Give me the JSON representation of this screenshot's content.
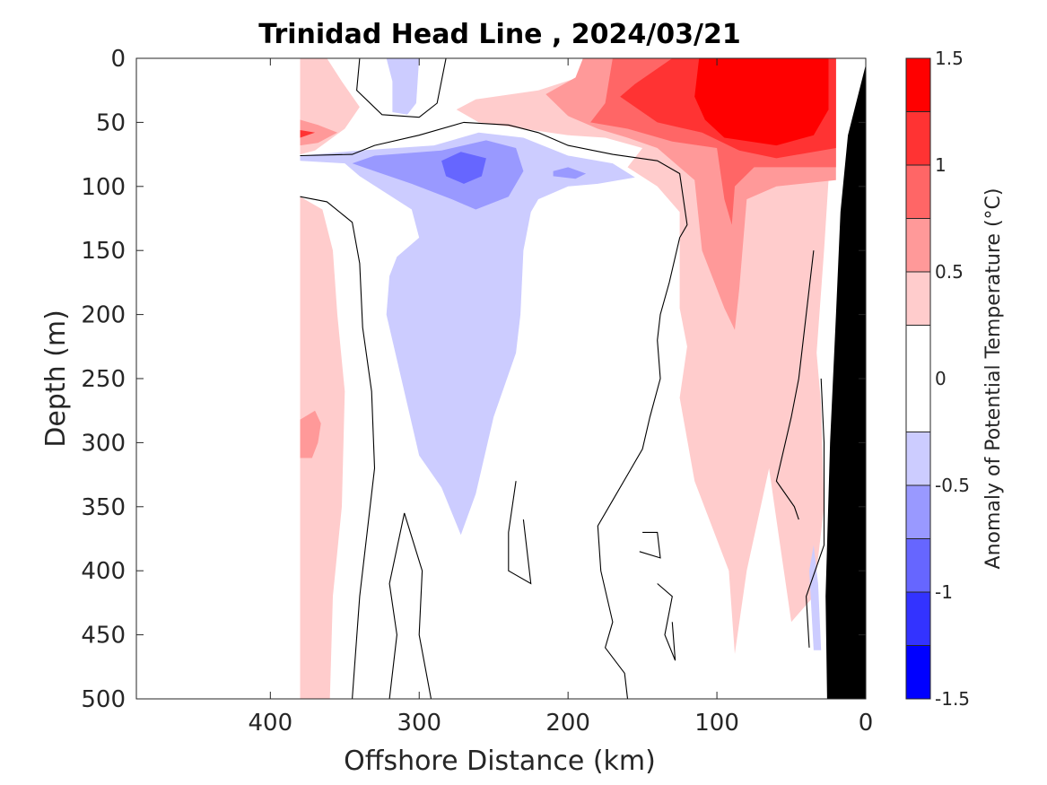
{
  "chart_data": {
    "type": "heatmap",
    "subtype": "filled-contour",
    "title": "Trinidad Head Line , 2024/03/21",
    "xlabel": "Offshore Distance (km)",
    "ylabel": "Depth (m)",
    "xlim": [
      490,
      0
    ],
    "x_reversed": true,
    "ylim": [
      0,
      500
    ],
    "y_reversed": true,
    "x_ticks": [
      400,
      300,
      200,
      100,
      0
    ],
    "y_ticks": [
      0,
      50,
      100,
      150,
      200,
      250,
      300,
      350,
      400,
      450,
      500
    ],
    "colorbar": {
      "label": "Anomaly of Potential Temperature (°C)",
      "ticks": [
        1.5,
        1,
        0.5,
        0,
        -0.5,
        -1,
        -1.5
      ],
      "range": [
        -1.5,
        1.5
      ],
      "levels": [
        {
          "from": 1.25,
          "to": 1.5,
          "color": "#ff0000"
        },
        {
          "from": 1.0,
          "to": 1.25,
          "color": "#ff3333"
        },
        {
          "from": 0.75,
          "to": 1.0,
          "color": "#ff6666"
        },
        {
          "from": 0.5,
          "to": 0.75,
          "color": "#ff9999"
        },
        {
          "from": 0.25,
          "to": 0.5,
          "color": "#ffcccc"
        },
        {
          "from": -0.25,
          "to": 0.25,
          "color": "#ffffff"
        },
        {
          "from": -0.5,
          "to": -0.25,
          "color": "#ccccff"
        },
        {
          "from": -0.75,
          "to": -0.5,
          "color": "#9999ff"
        },
        {
          "from": -1.0,
          "to": -0.75,
          "color": "#6666ff"
        },
        {
          "from": -1.25,
          "to": -1.0,
          "color": "#3333ff"
        },
        {
          "from": -1.5,
          "to": -1.25,
          "color": "#0000ff"
        }
      ]
    },
    "data_extent_km": [
      380,
      20
    ],
    "regions": [
      {
        "anomaly": 0.35,
        "color": "#ffcccc",
        "points": [
          [
            380,
            0
          ],
          [
            362,
            0
          ],
          [
            352,
            18
          ],
          [
            340,
            38
          ],
          [
            350,
            55
          ],
          [
            370,
            72
          ],
          [
            380,
            75
          ]
        ]
      },
      {
        "anomaly": 0.35,
        "color": "#ffcccc",
        "points": [
          [
            380,
            108
          ],
          [
            365,
            118
          ],
          [
            358,
            150
          ],
          [
            355,
            200
          ],
          [
            350,
            260
          ],
          [
            352,
            350
          ],
          [
            358,
            420
          ],
          [
            360,
            500
          ],
          [
            380,
            500
          ]
        ]
      },
      {
        "anomaly": 0.6,
        "color": "#ff9999",
        "points": [
          [
            380,
            48
          ],
          [
            368,
            52
          ],
          [
            355,
            58
          ],
          [
            368,
            66
          ],
          [
            380,
            68
          ]
        ]
      },
      {
        "anomaly": 1.1,
        "color": "#ff3333",
        "points": [
          [
            380,
            56
          ],
          [
            370,
            58
          ],
          [
            380,
            62
          ]
        ]
      },
      {
        "anomaly": 0.6,
        "color": "#ff9999",
        "points": [
          [
            380,
            282
          ],
          [
            370,
            275
          ],
          [
            366,
            285
          ],
          [
            368,
            300
          ],
          [
            372,
            312
          ],
          [
            380,
            312
          ]
        ]
      },
      {
        "anomaly": 0.35,
        "color": "#ffcccc",
        "points": [
          [
            275,
            40
          ],
          [
            262,
            32
          ],
          [
            220,
            25
          ],
          [
            185,
            12
          ],
          [
            165,
            0
          ],
          [
            20,
            0
          ],
          [
            22,
            40
          ],
          [
            28,
            150
          ],
          [
            33,
            230
          ],
          [
            30,
            270
          ],
          [
            28,
            350
          ],
          [
            35,
            420
          ],
          [
            50,
            440
          ],
          [
            60,
            360
          ],
          [
            65,
            320
          ],
          [
            80,
            400
          ],
          [
            88,
            465
          ],
          [
            92,
            400
          ],
          [
            115,
            330
          ],
          [
            125,
            265
          ],
          [
            120,
            225
          ],
          [
            125,
            195
          ],
          [
            125,
            120
          ],
          [
            140,
            100
          ],
          [
            160,
            85
          ],
          [
            150,
            70
          ],
          [
            175,
            62
          ],
          [
            200,
            60
          ],
          [
            230,
            55
          ],
          [
            260,
            50
          ]
        ]
      },
      {
        "anomaly": 0.6,
        "color": "#ff9999",
        "points": [
          [
            215,
            28
          ],
          [
            195,
            15
          ],
          [
            190,
            0
          ],
          [
            20,
            0
          ],
          [
            20,
            95
          ],
          [
            60,
            100
          ],
          [
            80,
            110
          ],
          [
            85,
            180
          ],
          [
            88,
            212
          ],
          [
            95,
            195
          ],
          [
            110,
            150
          ],
          [
            115,
            95
          ],
          [
            140,
            70
          ],
          [
            160,
            62
          ],
          [
            180,
            55
          ],
          [
            200,
            45
          ]
        ]
      },
      {
        "anomaly": 0.85,
        "color": "#ff6666",
        "points": [
          [
            185,
            50
          ],
          [
            175,
            35
          ],
          [
            170,
            0
          ],
          [
            20,
            0
          ],
          [
            20,
            85
          ],
          [
            75,
            85
          ],
          [
            88,
            100
          ],
          [
            90,
            130
          ],
          [
            95,
            110
          ],
          [
            100,
            70
          ],
          [
            130,
            65
          ],
          [
            160,
            55
          ]
        ]
      },
      {
        "anomaly": 1.1,
        "color": "#ff3333",
        "points": [
          [
            165,
            30
          ],
          [
            155,
            20
          ],
          [
            130,
            0
          ],
          [
            20,
            0
          ],
          [
            20,
            70
          ],
          [
            60,
            78
          ],
          [
            85,
            72
          ],
          [
            110,
            58
          ],
          [
            140,
            50
          ]
        ]
      },
      {
        "anomaly": 1.4,
        "color": "#ff0000",
        "points": [
          [
            115,
            30
          ],
          [
            112,
            0
          ],
          [
            25,
            0
          ],
          [
            25,
            40
          ],
          [
            35,
            60
          ],
          [
            60,
            68
          ],
          [
            95,
            62
          ],
          [
            108,
            48
          ]
        ]
      },
      {
        "anomaly": -0.35,
        "color": "#ccccff",
        "points": [
          [
            322,
            0
          ],
          [
            318,
            18
          ],
          [
            318,
            42
          ],
          [
            308,
            44
          ],
          [
            302,
            35
          ],
          [
            300,
            0
          ]
        ]
      },
      {
        "anomaly": -0.35,
        "color": "#ccccff",
        "points": [
          [
            380,
            80
          ],
          [
            350,
            82
          ],
          [
            340,
            92
          ],
          [
            305,
            118
          ],
          [
            300,
            140
          ],
          [
            315,
            155
          ],
          [
            320,
            170
          ],
          [
            322,
            200
          ],
          [
            312,
            250
          ],
          [
            300,
            310
          ],
          [
            285,
            335
          ],
          [
            272,
            372
          ],
          [
            262,
            340
          ],
          [
            250,
            280
          ],
          [
            235,
            230
          ],
          [
            232,
            200
          ],
          [
            230,
            150
          ],
          [
            225,
            120
          ],
          [
            220,
            110
          ],
          [
            200,
            100
          ],
          [
            180,
            98
          ],
          [
            155,
            93
          ],
          [
            170,
            82
          ],
          [
            200,
            76
          ],
          [
            230,
            62
          ],
          [
            260,
            58
          ],
          [
            290,
            68
          ],
          [
            340,
            72
          ],
          [
            380,
            76
          ]
        ]
      },
      {
        "anomaly": -0.6,
        "color": "#9999ff",
        "points": [
          [
            345,
            82
          ],
          [
            330,
            88
          ],
          [
            305,
            98
          ],
          [
            278,
            110
          ],
          [
            262,
            118
          ],
          [
            240,
            108
          ],
          [
            230,
            88
          ],
          [
            235,
            70
          ],
          [
            255,
            64
          ],
          [
            285,
            72
          ],
          [
            330,
            76
          ]
        ]
      },
      {
        "anomaly": -0.6,
        "color": "#9999ff",
        "points": [
          [
            210,
            88
          ],
          [
            200,
            85
          ],
          [
            188,
            90
          ],
          [
            195,
            94
          ],
          [
            210,
            92
          ]
        ]
      },
      {
        "anomaly": -0.85,
        "color": "#6666ff",
        "points": [
          [
            285,
            80
          ],
          [
            272,
            73
          ],
          [
            255,
            78
          ],
          [
            258,
            92
          ],
          [
            270,
            98
          ],
          [
            282,
            92
          ]
        ]
      },
      {
        "anomaly": -0.35,
        "color": "#ccccff",
        "points": [
          [
            35,
            380
          ],
          [
            32,
            410
          ],
          [
            30,
            462
          ],
          [
            35,
            462
          ],
          [
            38,
            400
          ]
        ]
      }
    ],
    "contour_lines_0C": [
      [
        [
          380,
          76
        ],
        [
          345,
          75
        ],
        [
          330,
          68
        ],
        [
          300,
          60
        ],
        [
          270,
          50
        ],
        [
          240,
          52
        ],
        [
          220,
          58
        ],
        [
          200,
          68
        ],
        [
          170,
          75
        ],
        [
          140,
          80
        ],
        [
          125,
          90
        ],
        [
          120,
          130
        ],
        [
          125,
          140
        ],
        [
          132,
          175
        ],
        [
          138,
          200
        ],
        [
          140,
          220
        ],
        [
          138,
          250
        ],
        [
          145,
          280
        ],
        [
          150,
          305
        ],
        [
          160,
          325
        ],
        [
          170,
          345
        ],
        [
          180,
          365
        ],
        [
          178,
          400
        ],
        [
          170,
          440
        ],
        [
          175,
          460
        ],
        [
          162,
          480
        ],
        [
          160,
          500
        ]
      ],
      [
        [
          380,
          108
        ],
        [
          362,
          112
        ],
        [
          345,
          128
        ],
        [
          340,
          160
        ],
        [
          338,
          210
        ],
        [
          332,
          260
        ],
        [
          330,
          320
        ],
        [
          340,
          420
        ],
        [
          345,
          500
        ]
      ],
      [
        [
          340,
          0
        ],
        [
          342,
          25
        ],
        [
          325,
          44
        ],
        [
          300,
          46
        ],
        [
          288,
          35
        ],
        [
          282,
          0
        ]
      ],
      [
        [
          310,
          355
        ],
        [
          298,
          400
        ],
        [
          300,
          450
        ],
        [
          292,
          500
        ]
      ],
      [
        [
          310,
          355
        ],
        [
          320,
          410
        ],
        [
          315,
          450
        ],
        [
          320,
          500
        ]
      ],
      [
        [
          235,
          330
        ],
        [
          240,
          370
        ],
        [
          240,
          400
        ],
        [
          225,
          410
        ],
        [
          230,
          360
        ]
      ],
      [
        [
          150,
          370
        ],
        [
          140,
          370
        ],
        [
          138,
          390
        ],
        [
          152,
          385
        ]
      ],
      [
        [
          140,
          410
        ],
        [
          130,
          420
        ],
        [
          135,
          450
        ],
        [
          128,
          470
        ],
        [
          130,
          440
        ]
      ],
      [
        [
          45,
          360
        ],
        [
          48,
          350
        ],
        [
          60,
          330
        ],
        [
          50,
          280
        ],
        [
          45,
          250
        ],
        [
          40,
          200
        ],
        [
          35,
          150
        ]
      ],
      [
        [
          30,
          250
        ],
        [
          28,
          300
        ],
        [
          28,
          380
        ],
        [
          40,
          420
        ],
        [
          38,
          460
        ]
      ]
    ],
    "bottom_bathymetry": {
      "color": "#000000",
      "points": [
        [
          0,
          5
        ],
        [
          12,
          60
        ],
        [
          17,
          120
        ],
        [
          20,
          200
        ],
        [
          24,
          300
        ],
        [
          27,
          420
        ],
        [
          26,
          500
        ],
        [
          0,
          500
        ]
      ]
    }
  }
}
